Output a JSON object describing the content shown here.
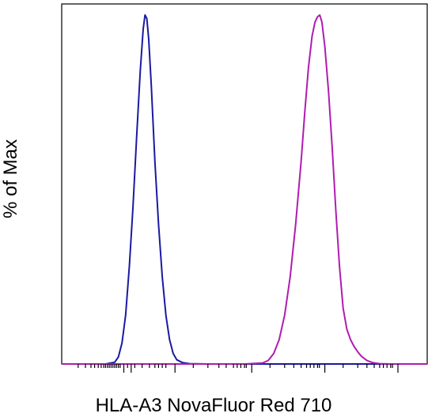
{
  "chart_data": {
    "type": "line",
    "title": "",
    "xlabel": "HLA-A3 NovaFluor Red 710",
    "ylabel": "% of Max",
    "x_scale": "biexponential",
    "xlim": [
      0,
      1
    ],
    "ylim": [
      0,
      100
    ],
    "x_tick_labels_shown": false,
    "y_ticks_shown": false,
    "grid": false,
    "legend": "none",
    "series": [
      {
        "color": "#1a1aa0",
        "points": [
          [
            0.0,
            0
          ],
          [
            0.08,
            0
          ],
          [
            0.12,
            0
          ],
          [
            0.145,
            0.5
          ],
          [
            0.155,
            2
          ],
          [
            0.165,
            6
          ],
          [
            0.175,
            14
          ],
          [
            0.185,
            28
          ],
          [
            0.195,
            45
          ],
          [
            0.205,
            65
          ],
          [
            0.215,
            84
          ],
          [
            0.223,
            96
          ],
          [
            0.228,
            100
          ],
          [
            0.233,
            99
          ],
          [
            0.238,
            93
          ],
          [
            0.245,
            80
          ],
          [
            0.255,
            58
          ],
          [
            0.265,
            40
          ],
          [
            0.275,
            25
          ],
          [
            0.285,
            14
          ],
          [
            0.295,
            7
          ],
          [
            0.305,
            3
          ],
          [
            0.315,
            1.2
          ],
          [
            0.33,
            0.4
          ],
          [
            0.35,
            0.1
          ],
          [
            0.4,
            0
          ],
          [
            1.0,
            0
          ]
        ]
      },
      {
        "color": "#b01cb0",
        "points": [
          [
            0.0,
            0
          ],
          [
            0.5,
            0
          ],
          [
            0.55,
            0.3
          ],
          [
            0.565,
            1
          ],
          [
            0.58,
            3
          ],
          [
            0.595,
            7
          ],
          [
            0.61,
            14
          ],
          [
            0.625,
            25
          ],
          [
            0.64,
            40
          ],
          [
            0.655,
            58
          ],
          [
            0.665,
            72
          ],
          [
            0.675,
            85
          ],
          [
            0.685,
            94
          ],
          [
            0.693,
            98
          ],
          [
            0.7,
            99.5
          ],
          [
            0.706,
            100
          ],
          [
            0.712,
            98
          ],
          [
            0.72,
            91
          ],
          [
            0.73,
            78
          ],
          [
            0.74,
            62
          ],
          [
            0.75,
            44
          ],
          [
            0.76,
            28
          ],
          [
            0.77,
            16
          ],
          [
            0.78,
            10
          ],
          [
            0.79,
            7
          ],
          [
            0.8,
            5
          ],
          [
            0.81,
            3.5
          ],
          [
            0.82,
            2.2
          ],
          [
            0.835,
            1
          ],
          [
            0.85,
            0.4
          ],
          [
            0.87,
            0.1
          ],
          [
            0.9,
            0
          ],
          [
            1.0,
            0
          ]
        ]
      }
    ]
  }
}
